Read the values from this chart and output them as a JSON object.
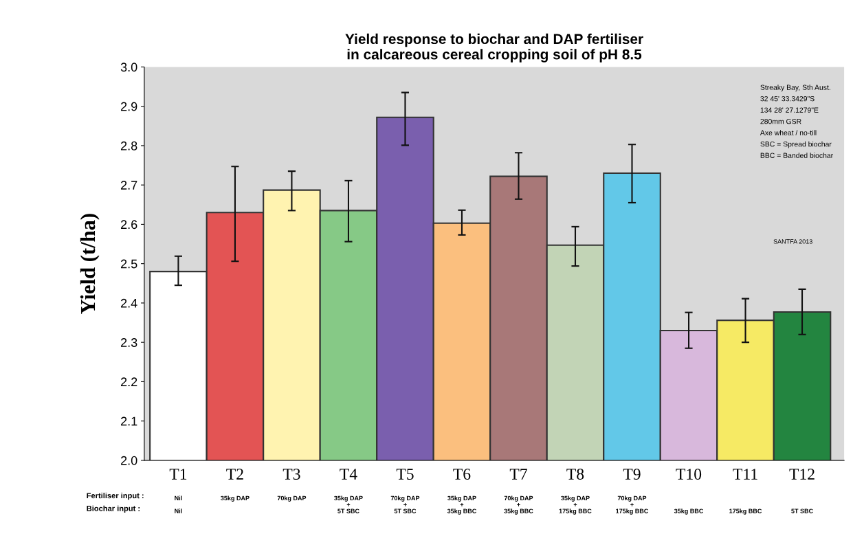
{
  "chart_data": {
    "type": "bar",
    "title": "Yield response to biochar and DAP fertiliser\nin calcareous cereal cropping soil of pH 8.5",
    "ylabel": "Yield (t/ha)",
    "categories": [
      "T1\nNil\n\nNil",
      "T2\n35kg DAP\n\n",
      "T3\n70kg DAP\n\n",
      "T4\n35kg DAP\n+\n5T SBC",
      "T5\n70kg DAP\n+\n5T SBC",
      "T6\n35kg DAP\n+\n35kg BBC",
      "T7\n70kg DAP\n+\n35kg BBC",
      "T8\n35kg DAP\n+\n175kg BBC",
      "T9\n70kg DAP\n+\n175kg BBC",
      "T10\n\n\n35kg BBC",
      "T11\n\n\n175kg BBC",
      "T12\n\n\n5T SBC"
    ],
    "values": [
      2.48,
      2.63,
      2.687,
      2.635,
      2.872,
      2.603,
      2.722,
      2.547,
      2.73,
      2.33,
      2.356,
      2.377
    ],
    "colors": [
      "#ffffff",
      "#e35454",
      "#fff3b0",
      "#86c986",
      "#7a5fae",
      "#fbbf7e",
      "#a87878",
      "#c2d4b6",
      "#62c8e8",
      "#d8b8dc",
      "#f6ea64",
      "#238540"
    ],
    "errors": [
      [
        2.445,
        2.519
      ],
      [
        2.506,
        2.747
      ],
      [
        2.635,
        2.735
      ],
      [
        2.556,
        2.711
      ],
      [
        2.801,
        2.935
      ],
      [
        2.573,
        2.636
      ],
      [
        2.664,
        2.782
      ],
      [
        2.494,
        2.594
      ],
      [
        2.655,
        2.803
      ],
      [
        2.285,
        2.376
      ],
      [
        2.3,
        2.411
      ],
      [
        2.32,
        2.435
      ]
    ],
    "ylim": [
      2.0,
      3.0
    ],
    "yticks": [
      {
        "value": 2.0,
        "label": "2.0"
      },
      {
        "value": 2.1,
        "label": "2.1"
      },
      {
        "value": 2.2,
        "label": "2.2"
      },
      {
        "value": 2.3,
        "label": "2.3"
      },
      {
        "value": 2.4,
        "label": "2.4"
      },
      {
        "value": 2.5,
        "label": "2.5"
      },
      {
        "value": 2.6,
        "label": "2.6"
      },
      {
        "value": 2.7,
        "label": "2.7"
      },
      {
        "value": 2.8,
        "label": "2.8"
      },
      {
        "value": 2.9,
        "label": "2.9"
      },
      {
        "value": 3.0,
        "label": "3.0"
      }
    ],
    "grid": false,
    "annotations": [
      "Streaky Bay, Sth Aust.\n32 45' 33.3429\"S\n134 28' 27.1279\"E\n280mm GSR\nAxe wheat / no-till\nSBC = Spread biochar\nBBC = Banded biochar",
      "SANTFA 2013",
      "Fertiliser input :",
      "Biochar input :"
    ]
  }
}
